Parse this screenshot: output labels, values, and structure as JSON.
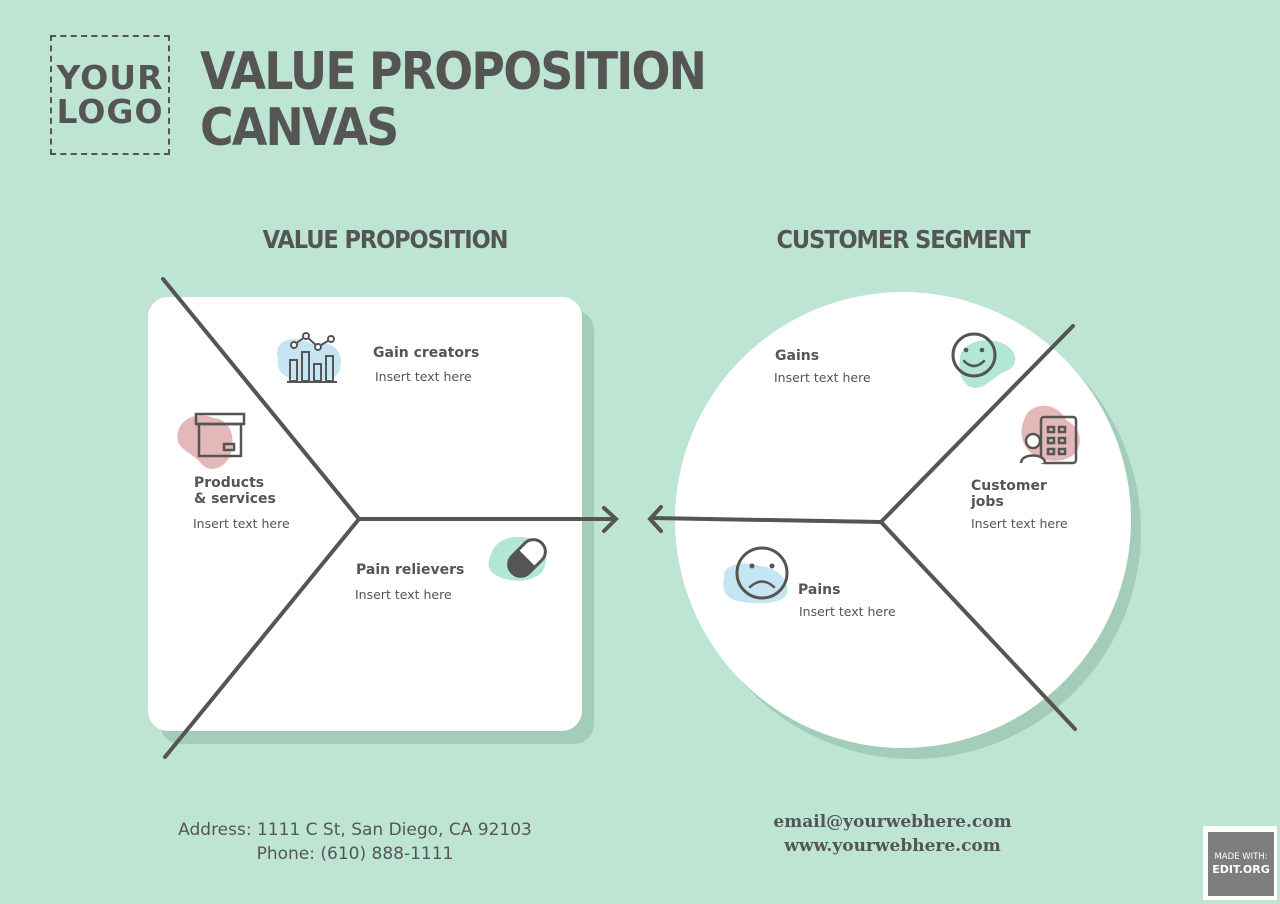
{
  "logo": {
    "line1": "YOUR",
    "line2": "LOGO"
  },
  "title": {
    "line1": "VALUE PROPOSITION",
    "line2": "CANVAS"
  },
  "value_proposition": {
    "heading": "VALUE PROPOSITION",
    "gain_creators": {
      "label": "Gain creators",
      "text": "Insert text here",
      "icon": "bar-chart-icon"
    },
    "products_services": {
      "line1": "Products",
      "line2": "& services",
      "text": "Insert text here",
      "icon": "box-icon"
    },
    "pain_relievers": {
      "label": "Pain relievers",
      "text": "Insert text here",
      "icon": "pill-icon"
    }
  },
  "customer_segment": {
    "heading": "CUSTOMER SEGMENT",
    "gains": {
      "label": "Gains",
      "text": "Insert text here",
      "icon": "smiley-icon"
    },
    "customer_jobs": {
      "line1": "Customer",
      "line2": "jobs",
      "text": "Insert text here",
      "icon": "worker-building-icon"
    },
    "pains": {
      "label": "Pains",
      "text": "Insert text here",
      "icon": "sad-face-icon"
    }
  },
  "contact": {
    "address": "Address: 1111 C St, San Diego, CA 92103",
    "phone": "Phone: (610) 888-1111",
    "email": "email@yourwebhere.com",
    "website": "www.yourwebhere.com"
  },
  "badge": {
    "line1": "MADE WITH:",
    "line2": "EDIT.ORG"
  },
  "colors": {
    "background": "#bee5d4",
    "shadow": "#a3cdb9",
    "ink": "#555653",
    "pink_blob": "#e4b8b9",
    "blue_blob": "#c5e5f3",
    "mint_blob": "#b2e7d3"
  }
}
